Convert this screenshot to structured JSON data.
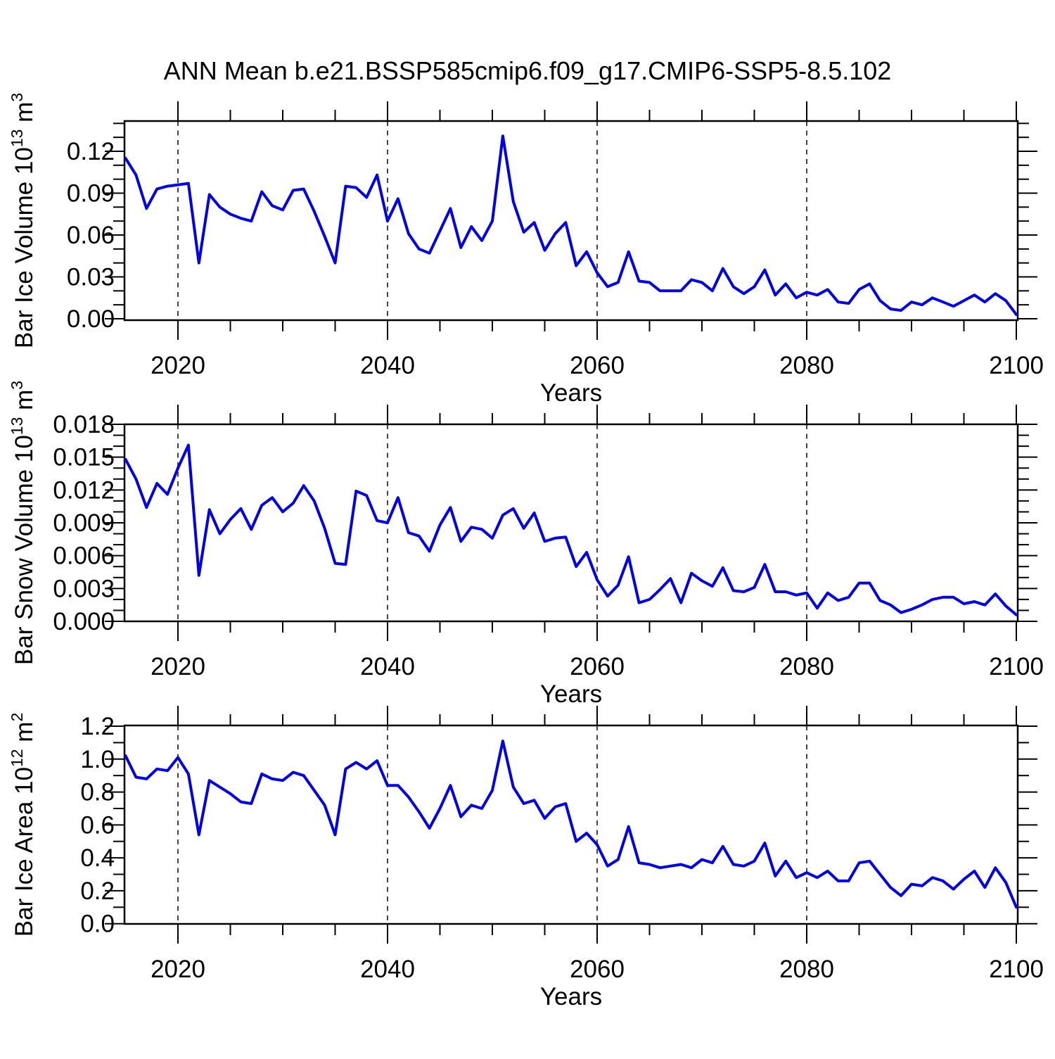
{
  "title": "ANN Mean b.e21.BSSP585cmip6.f09_g17.CMIP6-SSP5-8.5.102",
  "style": {
    "line_color": "#0000ee",
    "axis_color": "#000000",
    "grid_color": "#444444",
    "background": "#ffffff"
  },
  "chart_data": [
    {
      "type": "line",
      "ylabel_parts": [
        {
          "t": "Bar Ice Volume 10"
        },
        {
          "t": "13",
          "sup": true
        },
        {
          "t": " m"
        },
        {
          "t": "3",
          "sup": true
        }
      ],
      "xlabel": "Years",
      "x_start": 2015,
      "x_end": 2100,
      "x_step": 1,
      "xticks": [
        2020,
        2040,
        2060,
        2080,
        2100
      ],
      "xtick_labels": [
        "2020",
        "2040",
        "2060",
        "2080",
        "2100"
      ],
      "xgrid": [
        2020,
        2040,
        2060,
        2080
      ],
      "xminor_step": 5,
      "ylim": [
        0,
        0.1417
      ],
      "yticks": [
        0.0,
        0.03,
        0.06,
        0.09,
        0.12
      ],
      "ytick_labels": [
        "0.00",
        "0.03",
        "0.06",
        "0.09",
        "0.12"
      ],
      "yminor_step": 0.01,
      "values": [
        0.115,
        0.103,
        0.079,
        0.093,
        0.095,
        0.096,
        0.097,
        0.04,
        0.089,
        0.08,
        0.075,
        0.072,
        0.07,
        0.091,
        0.081,
        0.078,
        0.092,
        0.093,
        0.077,
        0.059,
        0.04,
        0.095,
        0.094,
        0.087,
        0.103,
        0.07,
        0.086,
        0.061,
        0.05,
        0.047,
        0.063,
        0.079,
        0.051,
        0.066,
        0.056,
        0.07,
        0.131,
        0.084,
        0.062,
        0.069,
        0.049,
        0.061,
        0.069,
        0.038,
        0.048,
        0.033,
        0.023,
        0.026,
        0.048,
        0.027,
        0.026,
        0.02,
        0.02,
        0.02,
        0.028,
        0.026,
        0.02,
        0.036,
        0.023,
        0.018,
        0.023,
        0.035,
        0.017,
        0.025,
        0.015,
        0.019,
        0.017,
        0.021,
        0.012,
        0.011,
        0.021,
        0.025,
        0.013,
        0.007,
        0.006,
        0.012,
        0.01,
        0.015,
        0.012,
        0.009,
        0.013,
        0.017,
        0.012,
        0.018,
        0.013,
        0.003
      ]
    },
    {
      "type": "line",
      "ylabel_parts": [
        {
          "t": "Bar Snow Volume 10"
        },
        {
          "t": "13",
          "sup": true
        },
        {
          "t": " m"
        },
        {
          "t": "3",
          "sup": true
        }
      ],
      "xlabel": "Years",
      "x_start": 2015,
      "x_end": 2100,
      "x_step": 1,
      "xticks": [
        2020,
        2040,
        2060,
        2080,
        2100
      ],
      "xtick_labels": [
        "2020",
        "2040",
        "2060",
        "2080",
        "2100"
      ],
      "xgrid": [
        2020,
        2040,
        2060,
        2080
      ],
      "xminor_step": 5,
      "ylim": [
        0,
        0.018
      ],
      "yticks": [
        0.0,
        0.003,
        0.006,
        0.009,
        0.012,
        0.015,
        0.018
      ],
      "ytick_labels": [
        "0.000",
        "0.003",
        "0.006",
        "0.009",
        "0.012",
        "0.015",
        "0.018"
      ],
      "yminor_step": 0.001,
      "values": [
        0.0148,
        0.013,
        0.0104,
        0.0126,
        0.0116,
        0.014,
        0.0161,
        0.0042,
        0.0102,
        0.008,
        0.0093,
        0.0103,
        0.0084,
        0.0106,
        0.0113,
        0.01,
        0.0108,
        0.0124,
        0.011,
        0.0085,
        0.0053,
        0.0052,
        0.0119,
        0.0115,
        0.0092,
        0.009,
        0.0113,
        0.0081,
        0.0078,
        0.0064,
        0.0088,
        0.0104,
        0.0073,
        0.0086,
        0.0084,
        0.0076,
        0.0097,
        0.0103,
        0.0085,
        0.0099,
        0.0073,
        0.0076,
        0.0077,
        0.005,
        0.0063,
        0.0038,
        0.0023,
        0.0033,
        0.0059,
        0.0017,
        0.002,
        0.0029,
        0.0039,
        0.0017,
        0.0044,
        0.0037,
        0.0032,
        0.0049,
        0.0028,
        0.0027,
        0.0031,
        0.0052,
        0.0027,
        0.0027,
        0.0024,
        0.0026,
        0.0012,
        0.0026,
        0.0019,
        0.0022,
        0.0035,
        0.0035,
        0.0019,
        0.0015,
        0.0008,
        0.0011,
        0.0015,
        0.002,
        0.0022,
        0.0022,
        0.0016,
        0.0018,
        0.0015,
        0.0025,
        0.0014,
        0.0006
      ]
    },
    {
      "type": "line",
      "ylabel_parts": [
        {
          "t": "Bar Ice Area 10"
        },
        {
          "t": "12",
          "sup": true
        },
        {
          "t": " m"
        },
        {
          "t": "2",
          "sup": true
        }
      ],
      "xlabel": "Years",
      "x_start": 2015,
      "x_end": 2100,
      "x_step": 1,
      "xticks": [
        2020,
        2040,
        2060,
        2080,
        2100
      ],
      "xtick_labels": [
        "2020",
        "2040",
        "2060",
        "2080",
        "2100"
      ],
      "xgrid": [
        2020,
        2040,
        2060,
        2080
      ],
      "xminor_step": 5,
      "ylim": [
        0,
        1.205
      ],
      "yticks": [
        0.0,
        0.2,
        0.4,
        0.6,
        0.8,
        1.0,
        1.2
      ],
      "ytick_labels": [
        "0.0",
        "0.2",
        "0.4",
        "0.6",
        "0.8",
        "1.0",
        "1.2"
      ],
      "yminor_step": 0.1,
      "values": [
        1.02,
        0.89,
        0.88,
        0.94,
        0.93,
        1.01,
        0.91,
        0.54,
        0.87,
        0.83,
        0.79,
        0.74,
        0.73,
        0.91,
        0.88,
        0.87,
        0.92,
        0.9,
        0.81,
        0.72,
        0.54,
        0.94,
        0.98,
        0.94,
        0.99,
        0.84,
        0.84,
        0.77,
        0.68,
        0.58,
        0.7,
        0.84,
        0.65,
        0.72,
        0.7,
        0.81,
        1.11,
        0.83,
        0.73,
        0.75,
        0.64,
        0.71,
        0.73,
        0.5,
        0.55,
        0.48,
        0.35,
        0.39,
        0.59,
        0.37,
        0.36,
        0.34,
        0.35,
        0.36,
        0.34,
        0.39,
        0.37,
        0.47,
        0.36,
        0.35,
        0.38,
        0.49,
        0.29,
        0.38,
        0.28,
        0.31,
        0.28,
        0.32,
        0.26,
        0.26,
        0.37,
        0.38,
        0.3,
        0.22,
        0.17,
        0.24,
        0.23,
        0.28,
        0.26,
        0.21,
        0.27,
        0.32,
        0.22,
        0.34,
        0.25,
        0.1
      ]
    }
  ]
}
